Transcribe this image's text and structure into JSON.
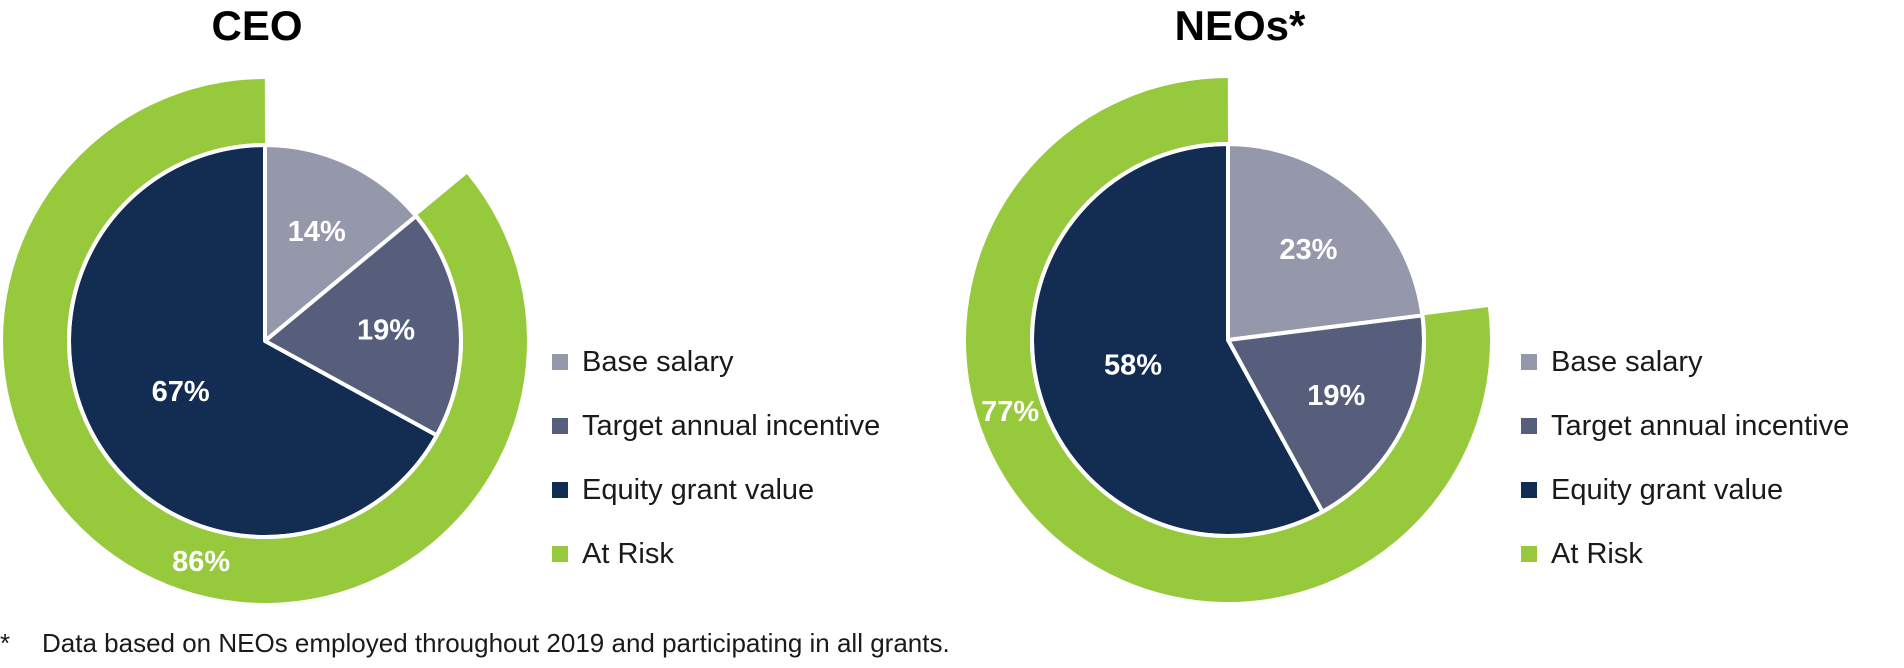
{
  "colors": {
    "base_salary": "#9597ab",
    "target_incentive": "#565e7b",
    "equity": "#122c52",
    "at_risk": "#97c93d"
  },
  "legend": [
    {
      "label": "Base salary",
      "key": "base_salary"
    },
    {
      "label": "Target annual incentive",
      "key": "target_incentive"
    },
    {
      "label": "Equity grant value",
      "key": "equity"
    },
    {
      "label": "At Risk",
      "key": "at_risk"
    }
  ],
  "footnote": {
    "marker": "*",
    "text": "Data based on NEOs employed throughout 2019 and participating in all grants."
  },
  "chart_data": [
    {
      "type": "pie",
      "title": "CEO",
      "categories": [
        "Base salary",
        "Target annual incentive",
        "Equity grant value"
      ],
      "values": [
        14,
        19,
        67
      ],
      "labels": [
        "14%",
        "19%",
        "67%"
      ],
      "ring": {
        "name": "At Risk",
        "value": 86,
        "label": "86%"
      }
    },
    {
      "type": "pie",
      "title": "NEOs*",
      "categories": [
        "Base salary",
        "Target annual incentive",
        "Equity grant value"
      ],
      "values": [
        23,
        19,
        58
      ],
      "labels": [
        "23%",
        "19%",
        "58%"
      ],
      "ring": {
        "name": "At Risk",
        "value": 77,
        "label": "77%"
      }
    }
  ]
}
